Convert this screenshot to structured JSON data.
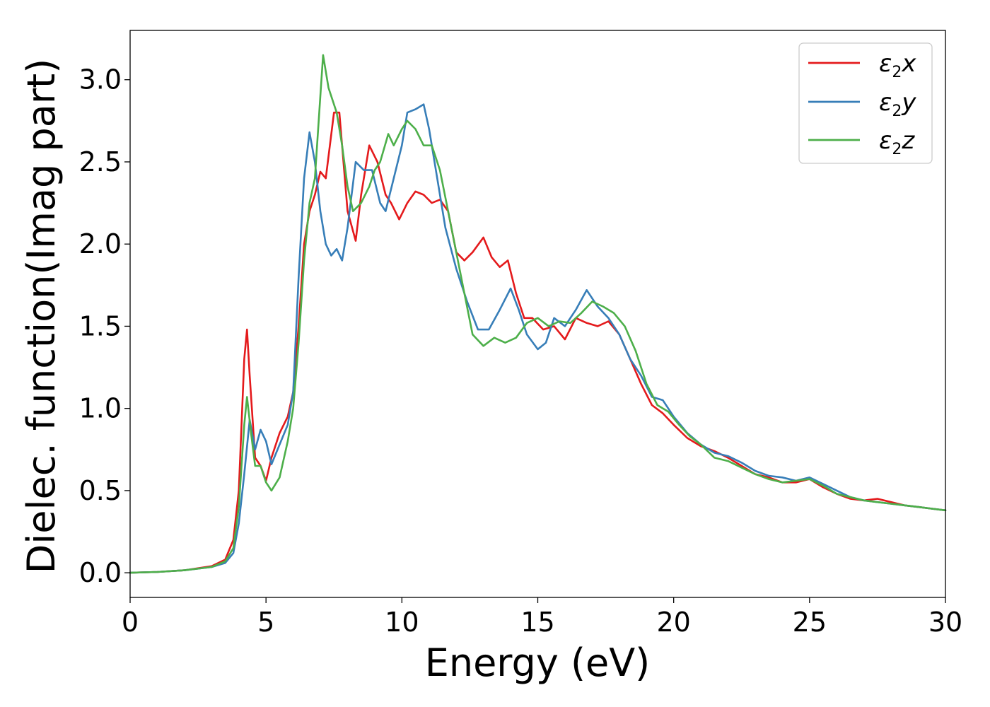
{
  "chart_data": {
    "type": "line",
    "xlabel": "Energy (eV)",
    "ylabel": "Dielec. function(Imag part)",
    "xlim": [
      0,
      30
    ],
    "ylim": [
      -0.15,
      3.3
    ],
    "xticks": [
      0,
      5,
      10,
      15,
      20,
      25,
      30
    ],
    "xtick_labels": [
      "0",
      "5",
      "10",
      "15",
      "20",
      "25",
      "30"
    ],
    "yticks": [
      0.0,
      0.5,
      1.0,
      1.5,
      2.0,
      2.5,
      3.0
    ],
    "ytick_labels": [
      "0.0",
      "0.5",
      "1.0",
      "1.5",
      "2.0",
      "2.5",
      "3.0"
    ],
    "grid": false,
    "legend_position": "top-right",
    "series": [
      {
        "name": "ε2x",
        "legend": {
          "base": "ε",
          "sub": "2",
          "var": "x"
        },
        "color": "#e41a1c",
        "points": [
          [
            0,
            0
          ],
          [
            1,
            0.005
          ],
          [
            2,
            0.015
          ],
          [
            3,
            0.04
          ],
          [
            3.5,
            0.08
          ],
          [
            3.8,
            0.2
          ],
          [
            4.0,
            0.5
          ],
          [
            4.2,
            1.3
          ],
          [
            4.3,
            1.48
          ],
          [
            4.4,
            1.2
          ],
          [
            4.6,
            0.7
          ],
          [
            4.8,
            0.65
          ],
          [
            5.0,
            0.56
          ],
          [
            5.2,
            0.7
          ],
          [
            5.5,
            0.85
          ],
          [
            5.8,
            0.95
          ],
          [
            6.0,
            1.1
          ],
          [
            6.2,
            1.5
          ],
          [
            6.4,
            2.0
          ],
          [
            6.6,
            2.2
          ],
          [
            6.8,
            2.3
          ],
          [
            7.0,
            2.44
          ],
          [
            7.2,
            2.4
          ],
          [
            7.5,
            2.8
          ],
          [
            7.7,
            2.8
          ],
          [
            8.0,
            2.2
          ],
          [
            8.3,
            2.02
          ],
          [
            8.5,
            2.3
          ],
          [
            8.8,
            2.6
          ],
          [
            9.1,
            2.5
          ],
          [
            9.4,
            2.3
          ],
          [
            9.6,
            2.25
          ],
          [
            9.9,
            2.15
          ],
          [
            10.2,
            2.25
          ],
          [
            10.5,
            2.32
          ],
          [
            10.8,
            2.3
          ],
          [
            11.1,
            2.25
          ],
          [
            11.4,
            2.27
          ],
          [
            11.7,
            2.2
          ],
          [
            12.0,
            1.95
          ],
          [
            12.3,
            1.9
          ],
          [
            12.6,
            1.95
          ],
          [
            13.0,
            2.04
          ],
          [
            13.3,
            1.92
          ],
          [
            13.6,
            1.86
          ],
          [
            13.9,
            1.9
          ],
          [
            14.2,
            1.7
          ],
          [
            14.5,
            1.55
          ],
          [
            14.8,
            1.55
          ],
          [
            15.2,
            1.48
          ],
          [
            15.6,
            1.5
          ],
          [
            16.0,
            1.42
          ],
          [
            16.4,
            1.55
          ],
          [
            16.8,
            1.52
          ],
          [
            17.2,
            1.5
          ],
          [
            17.6,
            1.53
          ],
          [
            18.0,
            1.45
          ],
          [
            18.4,
            1.3
          ],
          [
            18.8,
            1.15
          ],
          [
            19.2,
            1.02
          ],
          [
            19.6,
            0.97
          ],
          [
            20.0,
            0.9
          ],
          [
            20.5,
            0.82
          ],
          [
            21.0,
            0.77
          ],
          [
            21.5,
            0.74
          ],
          [
            22.0,
            0.7
          ],
          [
            22.5,
            0.65
          ],
          [
            23.0,
            0.6
          ],
          [
            23.5,
            0.58
          ],
          [
            24.0,
            0.55
          ],
          [
            24.5,
            0.55
          ],
          [
            25.0,
            0.57
          ],
          [
            25.5,
            0.52
          ],
          [
            26.0,
            0.48
          ],
          [
            26.5,
            0.45
          ],
          [
            27.0,
            0.44
          ],
          [
            27.5,
            0.45
          ],
          [
            28.0,
            0.43
          ],
          [
            28.5,
            0.41
          ],
          [
            29.0,
            0.4
          ],
          [
            29.5,
            0.39
          ],
          [
            30.0,
            0.38
          ]
        ]
      },
      {
        "name": "ε2y",
        "legend": {
          "base": "ε",
          "sub": "2",
          "var": "y"
        },
        "color": "#377eb8",
        "points": [
          [
            0,
            0
          ],
          [
            1,
            0.005
          ],
          [
            2,
            0.015
          ],
          [
            3,
            0.035
          ],
          [
            3.5,
            0.06
          ],
          [
            3.8,
            0.12
          ],
          [
            4.0,
            0.3
          ],
          [
            4.2,
            0.6
          ],
          [
            4.4,
            0.93
          ],
          [
            4.6,
            0.75
          ],
          [
            4.8,
            0.87
          ],
          [
            5.0,
            0.8
          ],
          [
            5.2,
            0.66
          ],
          [
            5.5,
            0.78
          ],
          [
            5.8,
            0.9
          ],
          [
            6.0,
            1.1
          ],
          [
            6.2,
            1.8
          ],
          [
            6.4,
            2.4
          ],
          [
            6.6,
            2.68
          ],
          [
            6.8,
            2.5
          ],
          [
            7.0,
            2.2
          ],
          [
            7.2,
            2.0
          ],
          [
            7.4,
            1.93
          ],
          [
            7.6,
            1.97
          ],
          [
            7.8,
            1.9
          ],
          [
            8.0,
            2.1
          ],
          [
            8.3,
            2.5
          ],
          [
            8.6,
            2.45
          ],
          [
            8.9,
            2.45
          ],
          [
            9.2,
            2.25
          ],
          [
            9.4,
            2.2
          ],
          [
            9.7,
            2.4
          ],
          [
            10.0,
            2.6
          ],
          [
            10.2,
            2.8
          ],
          [
            10.5,
            2.82
          ],
          [
            10.8,
            2.85
          ],
          [
            11.0,
            2.7
          ],
          [
            11.3,
            2.4
          ],
          [
            11.6,
            2.1
          ],
          [
            12.0,
            1.85
          ],
          [
            12.4,
            1.65
          ],
          [
            12.8,
            1.48
          ],
          [
            13.2,
            1.48
          ],
          [
            13.6,
            1.6
          ],
          [
            14.0,
            1.73
          ],
          [
            14.3,
            1.6
          ],
          [
            14.6,
            1.45
          ],
          [
            15.0,
            1.36
          ],
          [
            15.3,
            1.4
          ],
          [
            15.6,
            1.55
          ],
          [
            16.0,
            1.5
          ],
          [
            16.4,
            1.6
          ],
          [
            16.8,
            1.72
          ],
          [
            17.2,
            1.62
          ],
          [
            17.6,
            1.55
          ],
          [
            18.0,
            1.45
          ],
          [
            18.4,
            1.3
          ],
          [
            18.8,
            1.2
          ],
          [
            19.2,
            1.07
          ],
          [
            19.6,
            1.05
          ],
          [
            20.0,
            0.95
          ],
          [
            20.5,
            0.85
          ],
          [
            21.0,
            0.78
          ],
          [
            21.5,
            0.73
          ],
          [
            22.0,
            0.71
          ],
          [
            22.5,
            0.67
          ],
          [
            23.0,
            0.62
          ],
          [
            23.5,
            0.59
          ],
          [
            24.0,
            0.58
          ],
          [
            24.5,
            0.56
          ],
          [
            25.0,
            0.58
          ],
          [
            25.5,
            0.54
          ],
          [
            26.0,
            0.5
          ],
          [
            26.5,
            0.46
          ],
          [
            27.0,
            0.44
          ],
          [
            27.5,
            0.43
          ],
          [
            28.0,
            0.42
          ],
          [
            28.5,
            0.41
          ],
          [
            29.0,
            0.4
          ],
          [
            29.5,
            0.39
          ],
          [
            30.0,
            0.38
          ]
        ]
      },
      {
        "name": "ε2z",
        "legend": {
          "base": "ε",
          "sub": "2",
          "var": "z"
        },
        "color": "#4daf4a",
        "points": [
          [
            0,
            0
          ],
          [
            1,
            0.005
          ],
          [
            2,
            0.015
          ],
          [
            3,
            0.035
          ],
          [
            3.5,
            0.07
          ],
          [
            3.8,
            0.15
          ],
          [
            4.0,
            0.4
          ],
          [
            4.2,
            0.9
          ],
          [
            4.3,
            1.07
          ],
          [
            4.45,
            0.85
          ],
          [
            4.6,
            0.65
          ],
          [
            4.8,
            0.65
          ],
          [
            5.0,
            0.55
          ],
          [
            5.2,
            0.5
          ],
          [
            5.5,
            0.58
          ],
          [
            5.8,
            0.8
          ],
          [
            6.0,
            1.0
          ],
          [
            6.2,
            1.4
          ],
          [
            6.4,
            1.9
          ],
          [
            6.6,
            2.25
          ],
          [
            6.8,
            2.4
          ],
          [
            7.0,
            2.9
          ],
          [
            7.1,
            3.15
          ],
          [
            7.3,
            2.95
          ],
          [
            7.6,
            2.8
          ],
          [
            7.8,
            2.6
          ],
          [
            8.0,
            2.35
          ],
          [
            8.2,
            2.2
          ],
          [
            8.5,
            2.25
          ],
          [
            8.8,
            2.35
          ],
          [
            9.0,
            2.45
          ],
          [
            9.2,
            2.5
          ],
          [
            9.5,
            2.67
          ],
          [
            9.7,
            2.6
          ],
          [
            10.0,
            2.7
          ],
          [
            10.2,
            2.75
          ],
          [
            10.5,
            2.7
          ],
          [
            10.8,
            2.6
          ],
          [
            11.1,
            2.6
          ],
          [
            11.4,
            2.45
          ],
          [
            11.7,
            2.2
          ],
          [
            12.0,
            1.95
          ],
          [
            12.3,
            1.7
          ],
          [
            12.6,
            1.45
          ],
          [
            13.0,
            1.38
          ],
          [
            13.4,
            1.43
          ],
          [
            13.8,
            1.4
          ],
          [
            14.2,
            1.43
          ],
          [
            14.6,
            1.52
          ],
          [
            15.0,
            1.55
          ],
          [
            15.4,
            1.5
          ],
          [
            15.8,
            1.53
          ],
          [
            16.2,
            1.52
          ],
          [
            16.6,
            1.58
          ],
          [
            17.0,
            1.65
          ],
          [
            17.4,
            1.62
          ],
          [
            17.8,
            1.58
          ],
          [
            18.2,
            1.5
          ],
          [
            18.6,
            1.35
          ],
          [
            19.0,
            1.15
          ],
          [
            19.4,
            1.02
          ],
          [
            19.8,
            0.98
          ],
          [
            20.2,
            0.9
          ],
          [
            20.6,
            0.83
          ],
          [
            21.0,
            0.78
          ],
          [
            21.5,
            0.7
          ],
          [
            22.0,
            0.68
          ],
          [
            22.5,
            0.64
          ],
          [
            23.0,
            0.6
          ],
          [
            23.5,
            0.57
          ],
          [
            24.0,
            0.55
          ],
          [
            24.5,
            0.56
          ],
          [
            25.0,
            0.57
          ],
          [
            25.5,
            0.53
          ],
          [
            26.0,
            0.48
          ],
          [
            26.5,
            0.46
          ],
          [
            27.0,
            0.44
          ],
          [
            27.5,
            0.43
          ],
          [
            28.0,
            0.42
          ],
          [
            28.5,
            0.41
          ],
          [
            29.0,
            0.4
          ],
          [
            29.5,
            0.39
          ],
          [
            30.0,
            0.38
          ]
        ]
      }
    ]
  }
}
